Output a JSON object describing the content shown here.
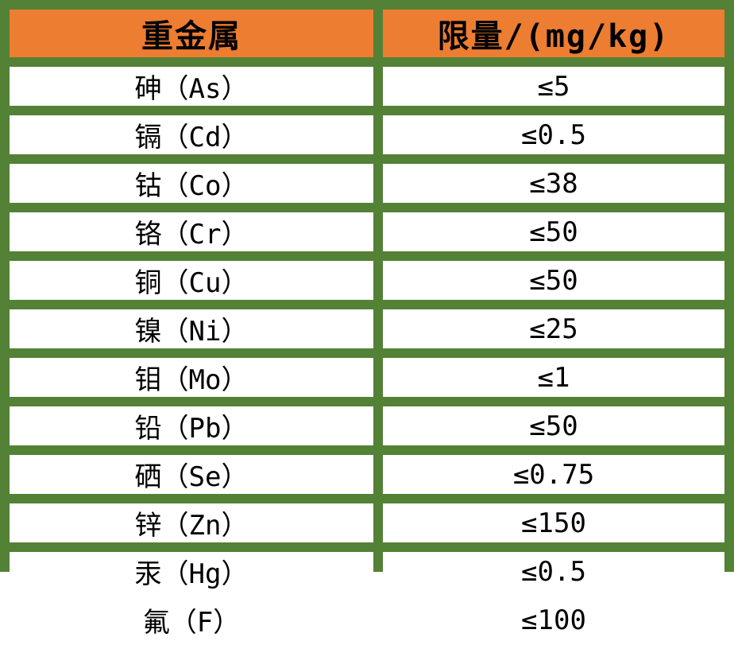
{
  "chart_data": {
    "type": "table",
    "columns": [
      "重金属",
      "限量/(mg/kg)"
    ],
    "rows": [
      [
        "砷（As）",
        "≤5"
      ],
      [
        "镉（Cd）",
        "≤0.5"
      ],
      [
        "钴（Co）",
        "≤38"
      ],
      [
        "铬（Cr）",
        "≤50"
      ],
      [
        "铜（Cu）",
        "≤50"
      ],
      [
        "镍（Ni）",
        "≤25"
      ],
      [
        "钼（Mo）",
        "≤1"
      ],
      [
        "铅（Pb）",
        "≤50"
      ],
      [
        "硒（Se）",
        "≤0.75"
      ],
      [
        "锌（Zn）",
        "≤150"
      ],
      [
        "汞（Hg）",
        "≤0.5"
      ],
      [
        "氟（F）",
        "≤100"
      ]
    ],
    "title": "",
    "layout_hints": {
      "header_position": "top",
      "grid": "on",
      "cell_alignment": "center"
    }
  },
  "colors": {
    "header_bg": "#ED7D31",
    "grid_green": "#538135",
    "cell_bg": "#FFFFFF",
    "text": "#000000"
  }
}
